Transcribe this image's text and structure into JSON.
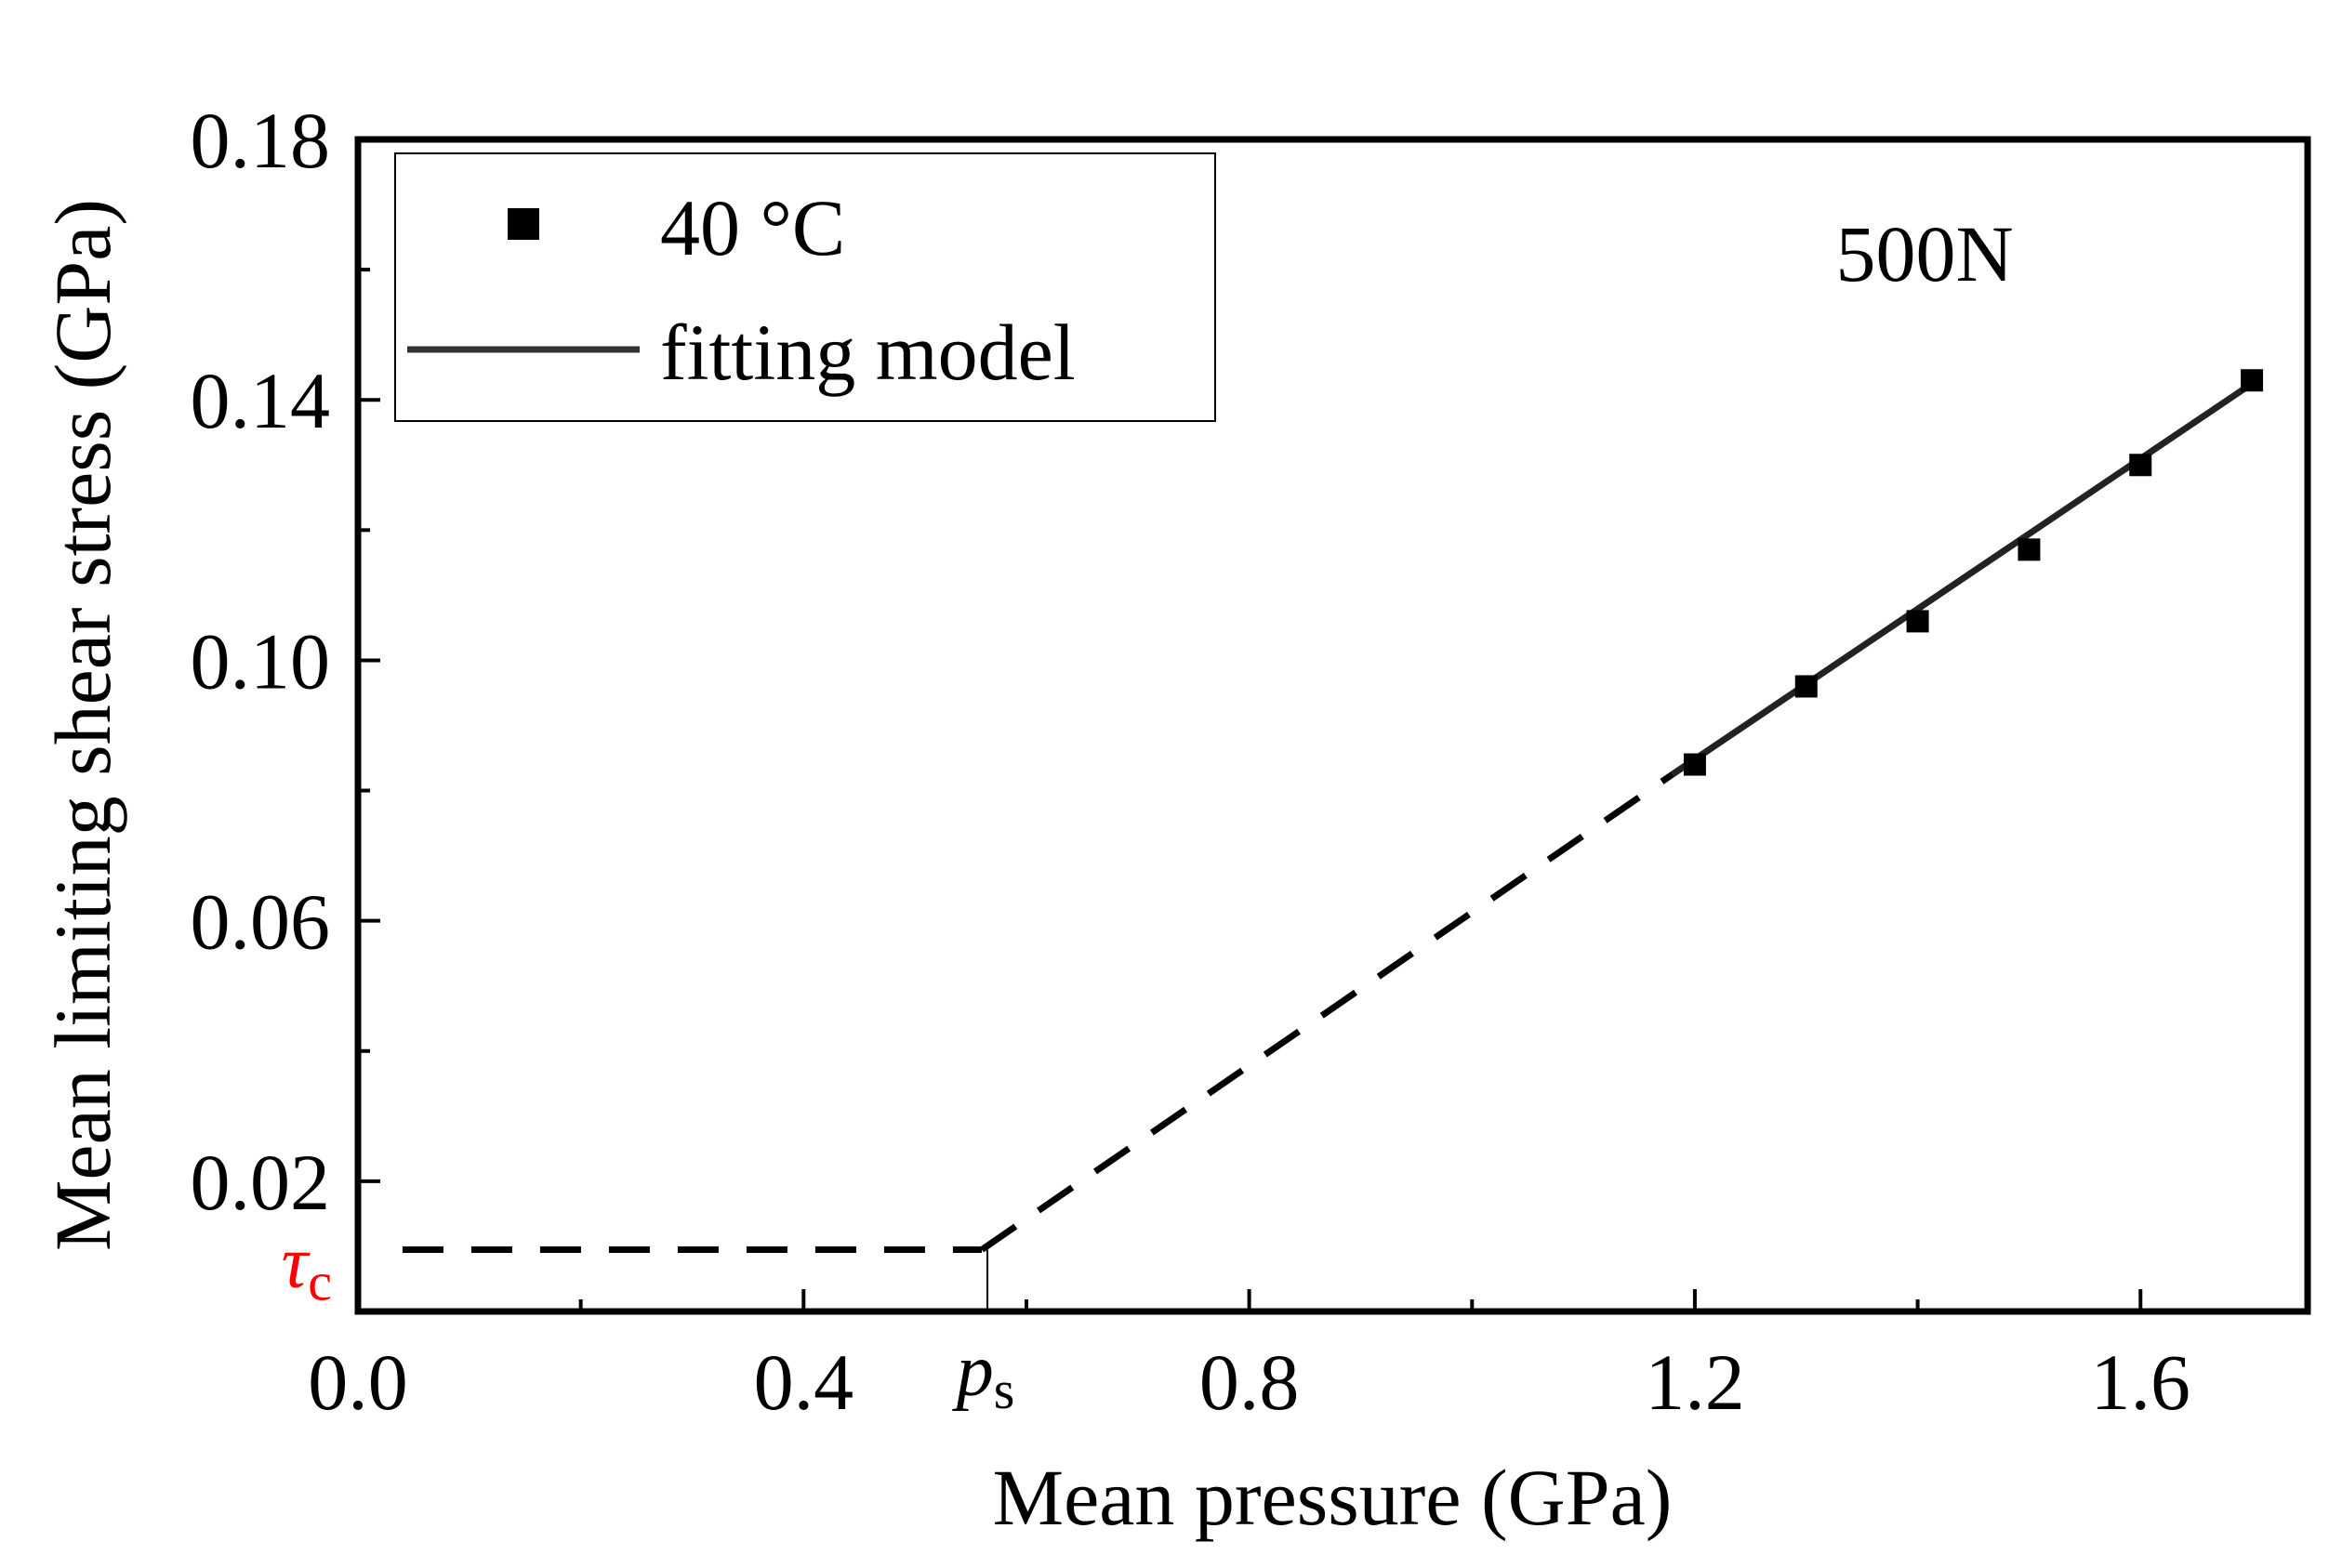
{
  "chart_data": {
    "type": "scatter",
    "title": "",
    "xlabel": "Mean pressure (GPa)",
    "ylabel": "Mean limiting shear stress (GPa)",
    "xlim": [
      0.0,
      1.75
    ],
    "ylim": [
      -0.0,
      0.18
    ],
    "x_ticks": [
      0.0,
      0.4,
      0.8,
      1.2,
      1.6
    ],
    "x_tick_labels": [
      "0.0",
      "0.4",
      "0.8",
      "1.2",
      "1.6"
    ],
    "y_ticks": [
      0.02,
      0.06,
      0.1,
      0.14,
      0.18
    ],
    "y_tick_labels": [
      "0.02",
      "0.06",
      "0.10",
      "0.14",
      "0.18"
    ],
    "grid": false,
    "legend_position": "top-left",
    "annotation": "500N",
    "series": [
      {
        "name": "40 °C",
        "kind": "scatter",
        "marker": "square",
        "x": [
          1.2,
          1.3,
          1.4,
          1.5,
          1.6,
          1.7
        ],
        "y": [
          0.084,
          0.096,
          0.106,
          0.117,
          0.13,
          0.143
        ]
      },
      {
        "name": "fitting model",
        "kind": "line",
        "style": "solid",
        "x": [
          1.18,
          1.7
        ],
        "y": [
          0.0825,
          0.1425
        ]
      }
    ],
    "extrapolation": {
      "style": "dashed",
      "plateau_x": [
        0.04,
        0.56
      ],
      "plateau_y": 0.0095,
      "rise_x": [
        0.56,
        1.18
      ],
      "rise_y": [
        0.0095,
        0.0825
      ]
    },
    "tau_c": {
      "label": "τ",
      "subscript": "c",
      "value": 0.0095,
      "color": "#ff0000"
    },
    "p_s": {
      "label": "p",
      "subscript": "s",
      "value": 0.56
    }
  }
}
